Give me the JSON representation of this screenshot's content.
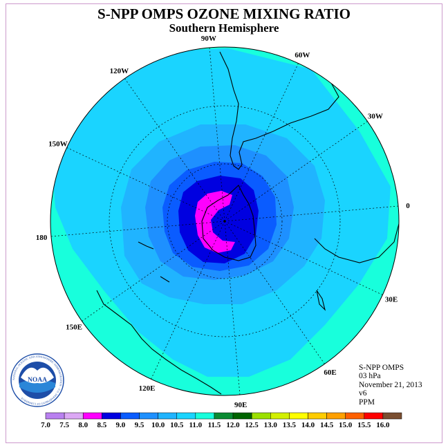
{
  "title": "S-NPP OMPS OZONE MIXING RATIO",
  "subtitle": "Southern Hemisphere",
  "longitude_labels": [
    "0",
    "30E",
    "60E",
    "90E",
    "120E",
    "150E",
    "180",
    "150W",
    "120W",
    "90W",
    "60W",
    "30W"
  ],
  "info": {
    "instrument": "S-NPP OMPS",
    "level": "03 hPa",
    "date": "November 21, 2013",
    "version": "v6",
    "units": "PPM"
  },
  "logo": {
    "text": "NOAA",
    "ring_text": "NATIONAL OCEANIC AND ATMOSPHERIC ADMINISTRATION · U.S. DEPARTMENT OF COMMERCE"
  },
  "colorbar": {
    "tick_labels": [
      "7.0",
      "7.5",
      "8.0",
      "8.5",
      "9.0",
      "9.5",
      "10.0",
      "10.5",
      "11.0",
      "11.5",
      "12.0",
      "12.5",
      "13.0",
      "13.5",
      "14.0",
      "14.5",
      "15.0",
      "15.5",
      "16.0"
    ],
    "colors": [
      "#b980f0",
      "#dca8f5",
      "#ff00ff",
      "#0000e0",
      "#0a5cff",
      "#1e90ff",
      "#20b4ff",
      "#1ad4ff",
      "#18ffdc",
      "#0a8a32",
      "#006400",
      "#9be000",
      "#d2f000",
      "#ffff00",
      "#ffcc00",
      "#ffa000",
      "#ff6000",
      "#ff0000",
      "#7a4e30"
    ]
  },
  "map_colors": {
    "ocean_outer": "#18ffdc",
    "band_10": "#1ad4ff",
    "band_9_5": "#20b4ff",
    "band_9": "#1e90ff",
    "band_8_5": "#0a5cff",
    "band_8": "#0000e0",
    "core": "#ff00ff"
  }
}
